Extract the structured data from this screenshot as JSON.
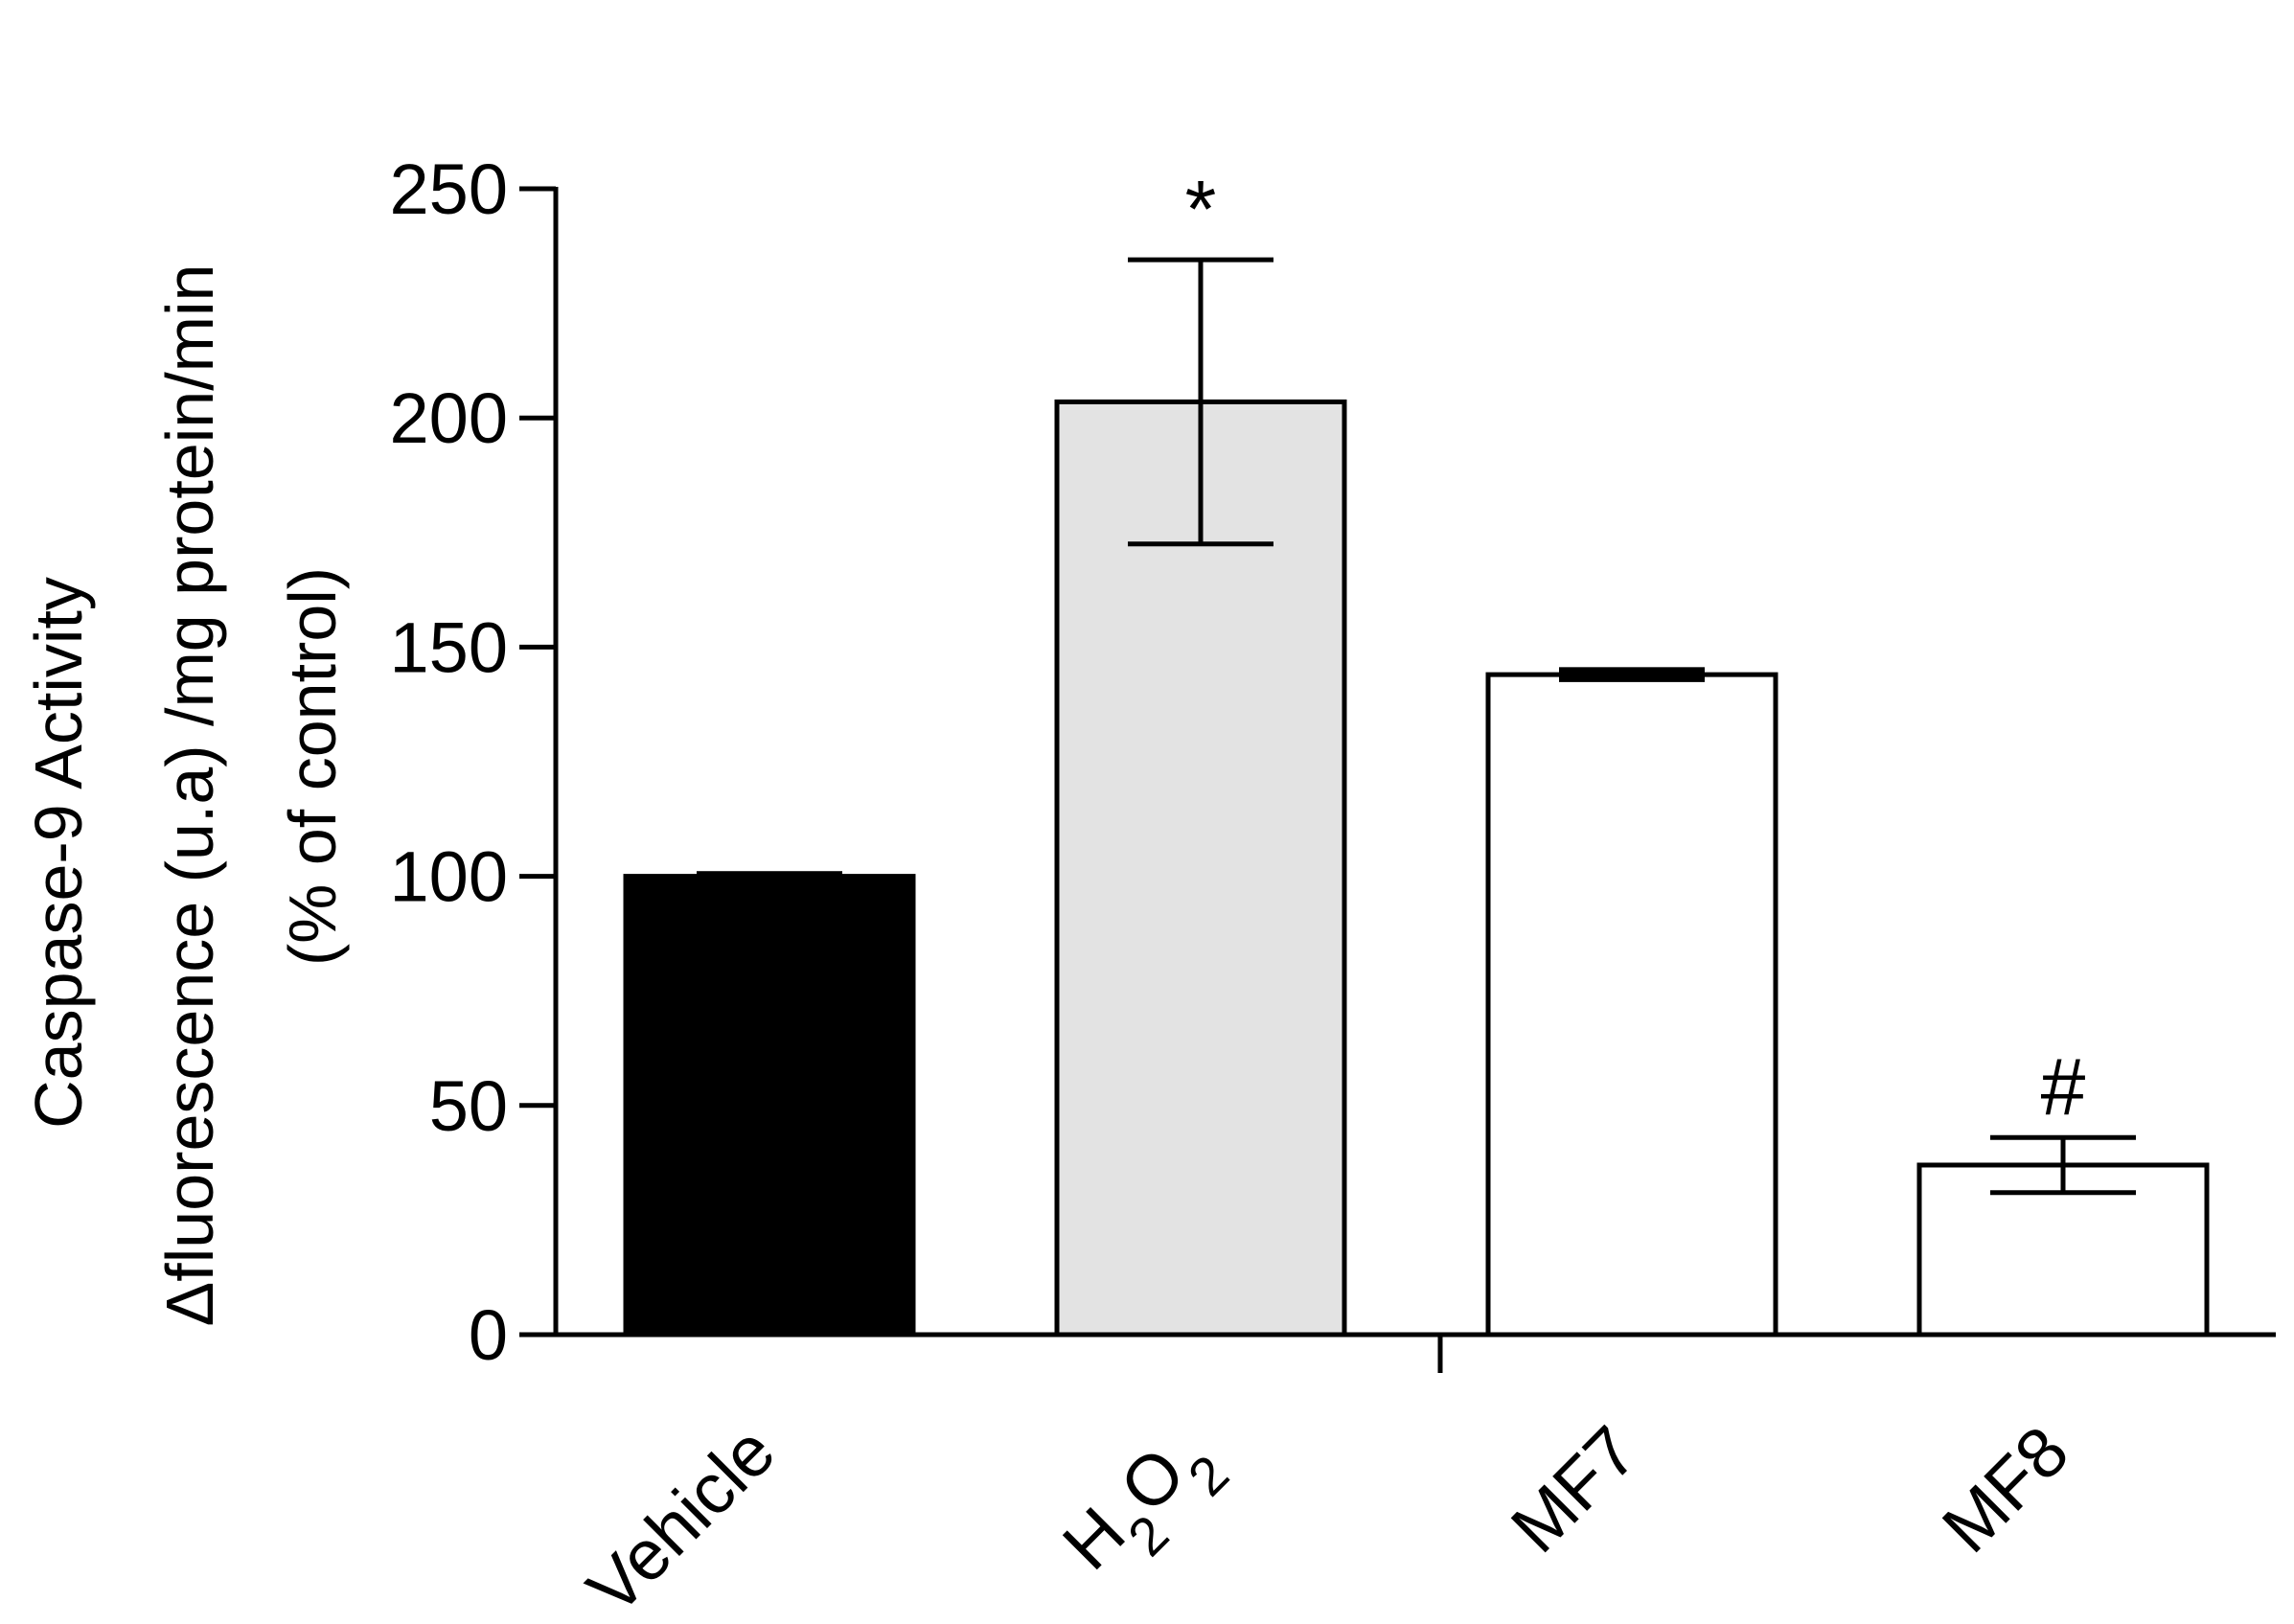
{
  "chart_data": {
    "type": "bar",
    "title": "",
    "ylabel_lines": [
      "Caspase-9 Activity",
      "Δfluorescence (u.a) /mg protein/min",
      "(% of control)"
    ],
    "xlabel": "",
    "ylim": [
      0,
      250
    ],
    "yticks": [
      0,
      50,
      100,
      150,
      200,
      250
    ],
    "categories": [
      "Vehicle",
      "H2O2",
      "MF7",
      "MF8"
    ],
    "values": [
      100,
      203.5,
      144,
      37
    ],
    "errors": [
      0.5,
      31,
      1,
      6
    ],
    "annotations": [
      "",
      "*",
      "",
      "#"
    ],
    "bar_fills": [
      "#000000",
      "#e3e3e3",
      "#ffffff",
      "#ffffff"
    ],
    "bar_stroke": "#000000",
    "grid": false,
    "legend": "none"
  }
}
